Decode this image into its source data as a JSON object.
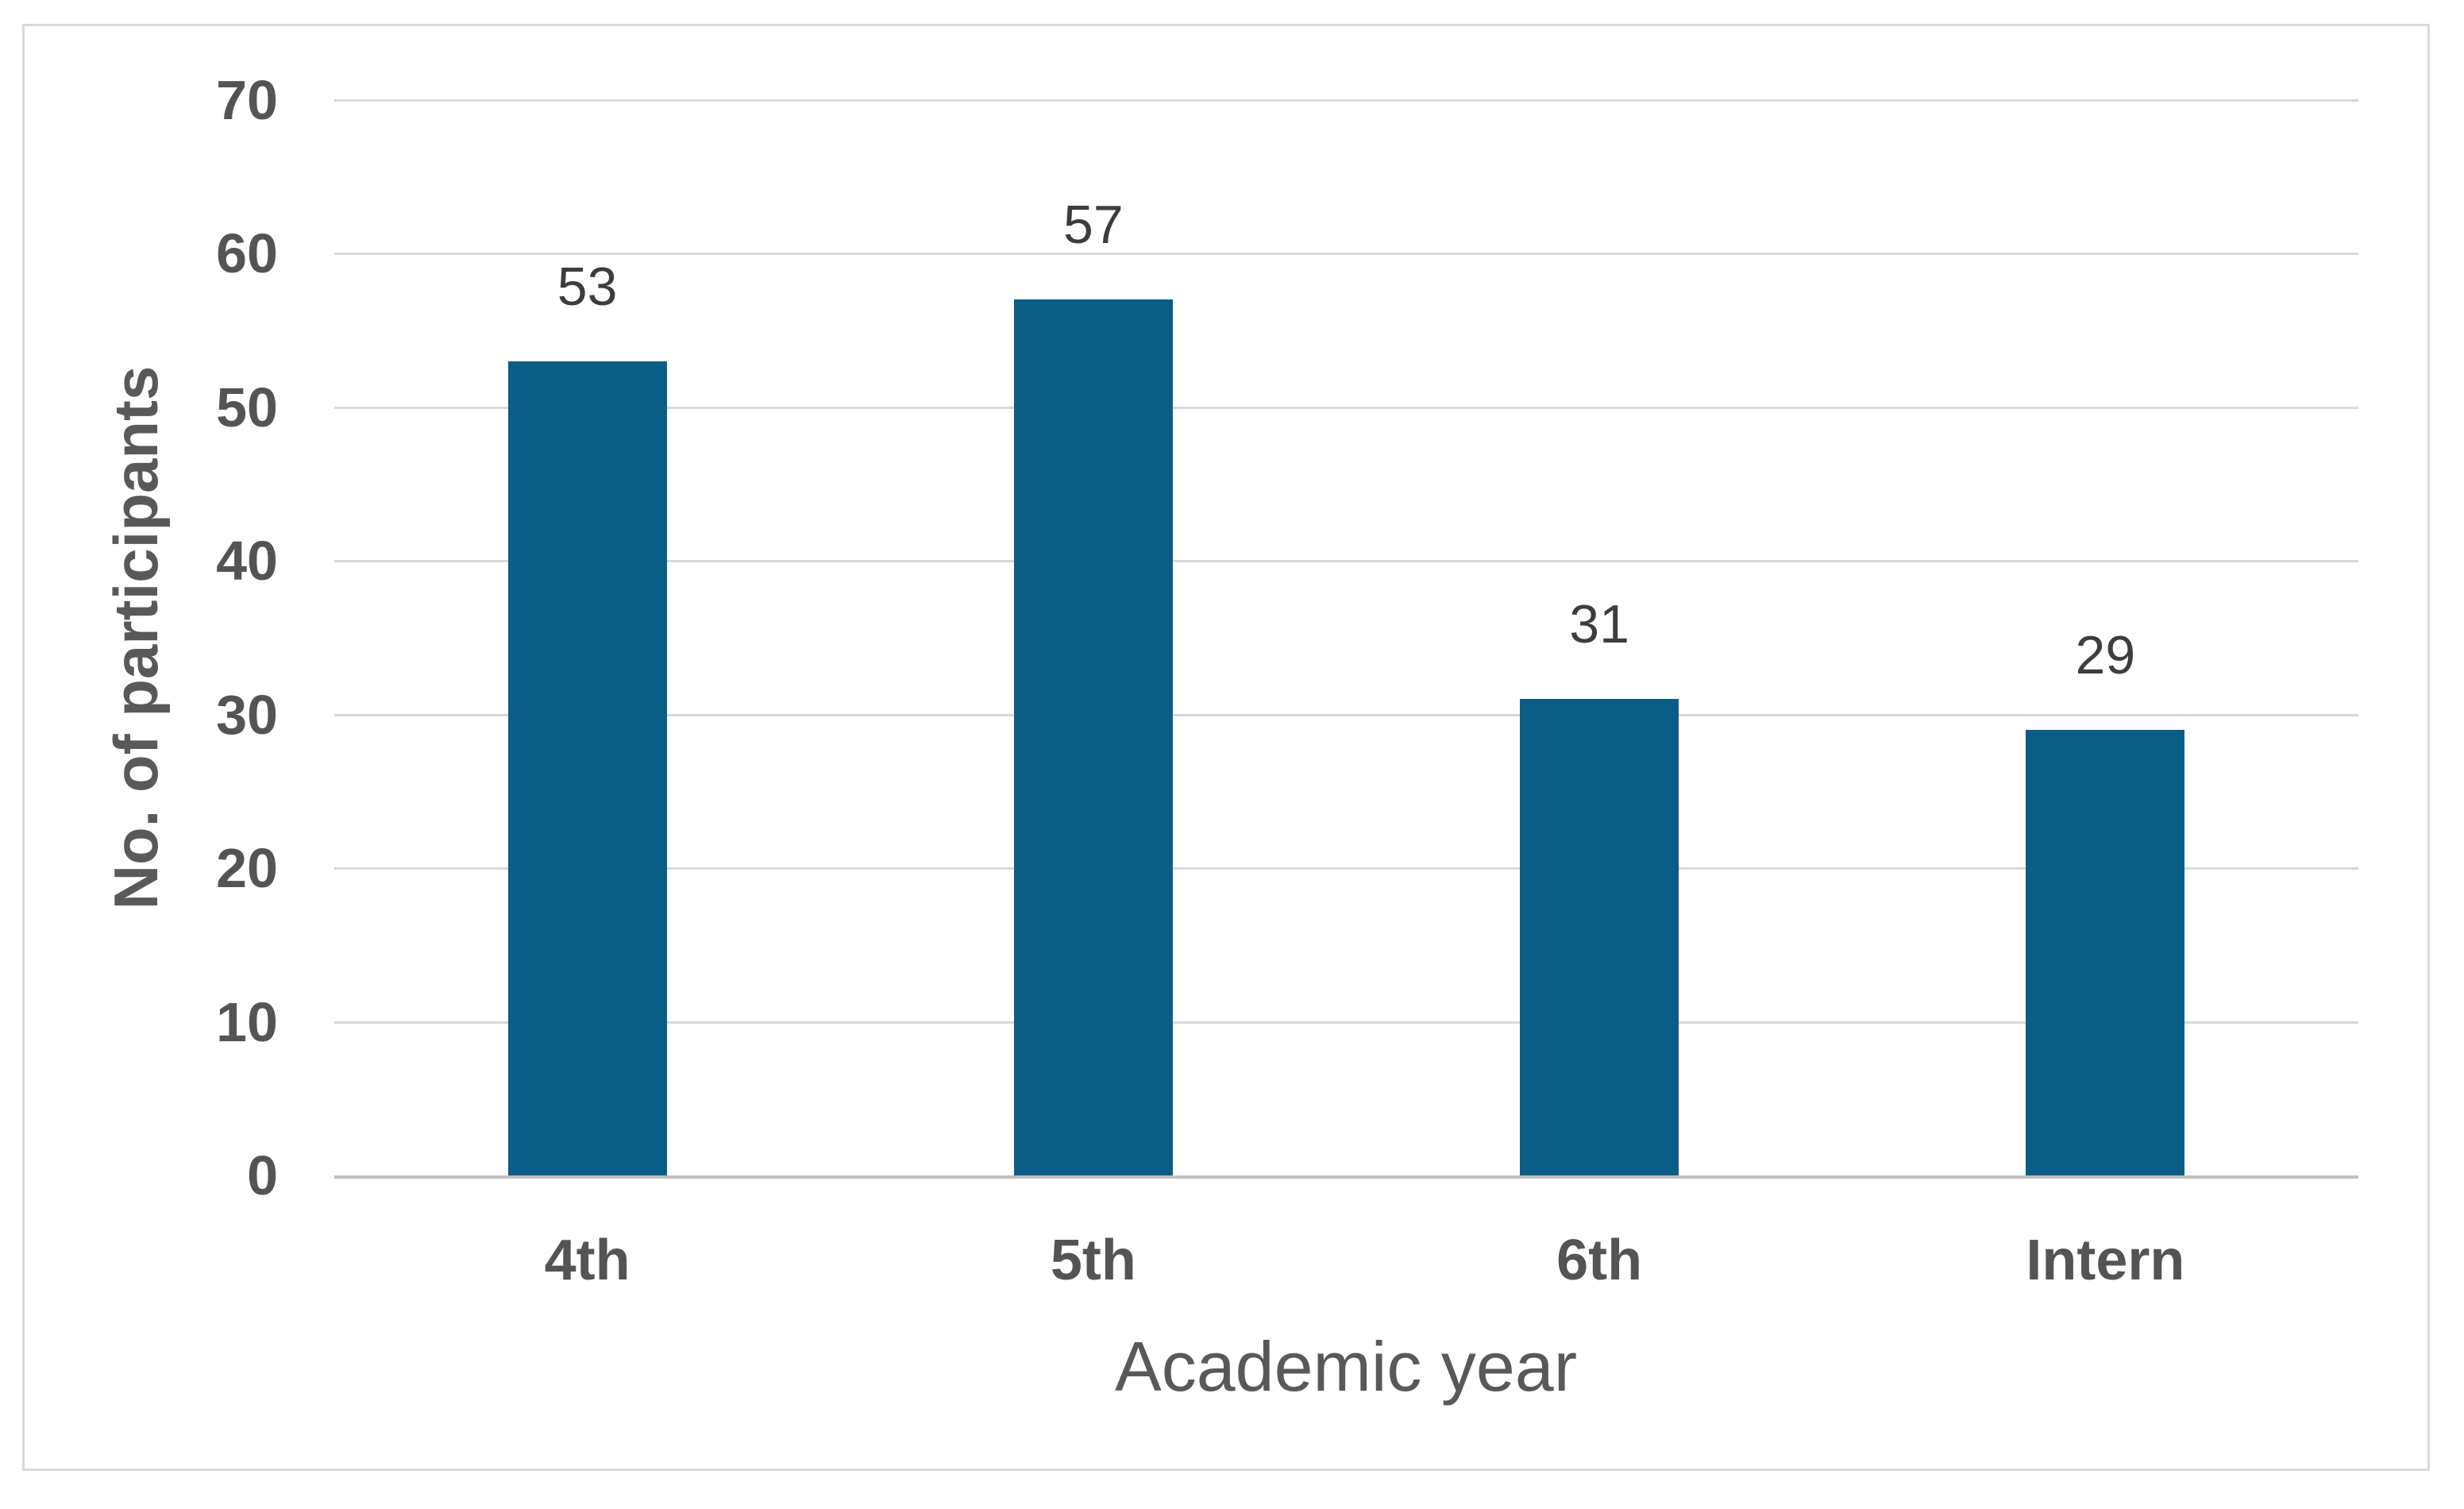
{
  "chart_data": {
    "type": "bar",
    "categories": [
      "4th",
      "5th",
      "6th",
      "Intern"
    ],
    "values": [
      53,
      57,
      31,
      29
    ],
    "data_labels": [
      "53",
      "57",
      "31",
      "29"
    ],
    "title": "",
    "xlabel": "Academic year",
    "ylabel": "No. of participants",
    "ylim": [
      0,
      70
    ],
    "ytick_step": 10,
    "ytick_labels": [
      "0",
      "10",
      "20",
      "30",
      "40",
      "50",
      "60",
      "70"
    ],
    "grid": "horizontal",
    "legend_position": "none",
    "colors": {
      "bar_fill": "#0A5E86",
      "gridline": "#D8D8D8",
      "axis_baseline": "#BFBFBF",
      "tick_text": "#545454",
      "data_label_text": "#3D3D3D",
      "axis_title_text": "#595959",
      "frame_border": "#D7D9DB",
      "background": "#FFFFFF"
    }
  }
}
